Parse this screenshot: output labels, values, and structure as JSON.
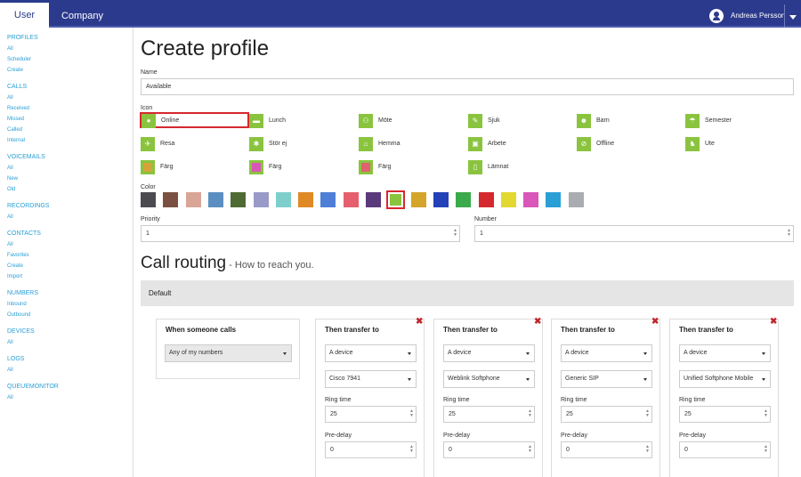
{
  "topbar": {
    "tab_user": "User",
    "tab_company": "Company",
    "username": "Andreas Persson"
  },
  "sidebar": [
    {
      "head": "PROFILES",
      "items": [
        "All",
        "Scheduler",
        "Create"
      ]
    },
    {
      "head": "CALLS",
      "items": [
        "All",
        "Received",
        "Missed",
        "Called",
        "Internal"
      ]
    },
    {
      "head": "VOICEMAILS",
      "items": [
        "All",
        "New",
        "Old"
      ]
    },
    {
      "head": "RECORDINGS",
      "items": [
        "All"
      ]
    },
    {
      "head": "CONTACTS",
      "items": [
        "All",
        "Favorites",
        "Create",
        "Import"
      ]
    },
    {
      "head": "NUMBERS",
      "items": [
        "Inbound",
        "Outbound"
      ]
    },
    {
      "head": "DEVICES",
      "items": [
        "All"
      ]
    },
    {
      "head": "LOGS",
      "items": [
        "All"
      ]
    },
    {
      "head": "QUEUEMONITOR",
      "items": [
        "All"
      ]
    }
  ],
  "page": {
    "title": "Create profile",
    "name_label": "Name",
    "name_value": "Available",
    "icon_label": "Icon",
    "color_label": "Color",
    "priority_label": "Priority",
    "priority_value": "1",
    "number_label": "Number",
    "number_value": "1"
  },
  "icons": [
    {
      "label": "Online",
      "glyph": "●",
      "icon": "online-icon"
    },
    {
      "label": "Lunch",
      "glyph": "▬",
      "icon": "lunch-icon"
    },
    {
      "label": "Möte",
      "glyph": "⚇",
      "icon": "meeting-icon"
    },
    {
      "label": "Sjuk",
      "glyph": "✎",
      "icon": "sick-icon"
    },
    {
      "label": "Barn",
      "glyph": "☻",
      "icon": "child-icon"
    },
    {
      "label": "Semester",
      "glyph": "☂",
      "icon": "vacation-icon"
    },
    {
      "label": "Resa",
      "glyph": "✈",
      "icon": "travel-icon"
    },
    {
      "label": "Stör ej",
      "glyph": "✱",
      "icon": "do-not-disturb-icon"
    },
    {
      "label": "Hemma",
      "glyph": "⌂",
      "icon": "home-icon"
    },
    {
      "label": "Arbete",
      "glyph": "▣",
      "icon": "work-icon"
    },
    {
      "label": "Offline",
      "glyph": "⊘",
      "icon": "offline-icon"
    },
    {
      "label": "Ute",
      "glyph": "♞",
      "icon": "outside-icon"
    },
    {
      "label": "Färg",
      "glyph": "",
      "icon": "color-icon",
      "color": "#d6a33a"
    },
    {
      "label": "Färg",
      "glyph": "",
      "icon": "color-icon",
      "color": "#d957b8"
    },
    {
      "label": "Färg",
      "glyph": "",
      "icon": "color-icon",
      "color": "#e0626e"
    },
    {
      "label": "Lämnat",
      "glyph": "▯",
      "icon": "left-icon"
    }
  ],
  "colors": [
    "#4a4a50",
    "#7a5140",
    "#d9a597",
    "#5b8fc2",
    "#4f6b34",
    "#9a9ac9",
    "#7ecfcb",
    "#e08a25",
    "#4d7fd6",
    "#e65f6f",
    "#5a3a7a",
    "#8ac43f",
    "#d4a52a",
    "#2342b8",
    "#3aaa4a",
    "#d6282f",
    "#e3d831",
    "#d957b8",
    "#2a9fd6",
    "#a9acb0"
  ],
  "routing": {
    "title": "Call routing",
    "subtitle": " - How to reach you.",
    "default_label": "Default",
    "first": {
      "title": "When someone calls",
      "select": "Any of my numbers"
    },
    "transfers": [
      {
        "title": "Then transfer to",
        "type": "A device",
        "device": "Cisco 7941",
        "ring_label": "Ring time",
        "ring": "25",
        "delay_label": "Pre-delay",
        "delay": "0"
      },
      {
        "title": "Then transfer to",
        "type": "A device",
        "device": "Weblink Softphone",
        "ring_label": "Ring time",
        "ring": "25",
        "delay_label": "Pre-delay",
        "delay": "0"
      },
      {
        "title": "Then transfer to",
        "type": "A device",
        "device": "Generic SIP",
        "ring_label": "Ring time",
        "ring": "25",
        "delay_label": "Pre-delay",
        "delay": "0"
      },
      {
        "title": "Then transfer to",
        "type": "A device",
        "device": "Unified Softphone Mobile",
        "ring_label": "Ring time",
        "ring": "25",
        "delay_label": "Pre-delay",
        "delay": "0"
      }
    ]
  }
}
